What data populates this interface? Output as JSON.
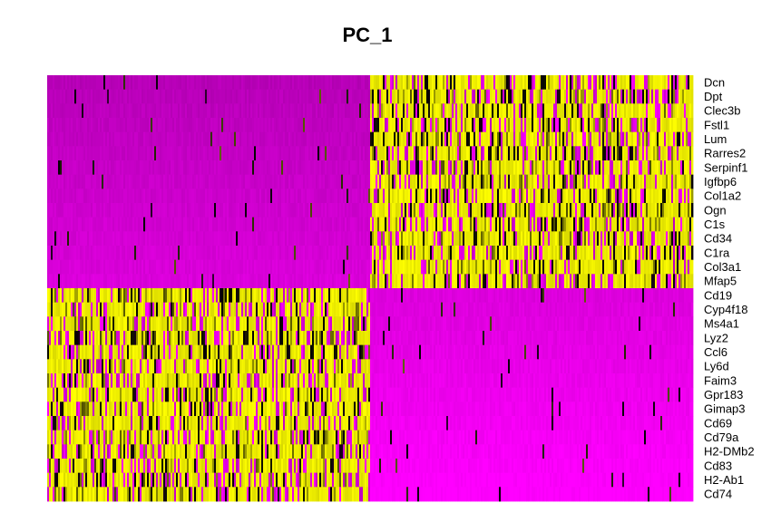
{
  "chart_data": {
    "type": "heatmap",
    "title": "PC_1",
    "genes": [
      "Dcn",
      "Dpt",
      "Clec3b",
      "Fstl1",
      "Lum",
      "Rarres2",
      "Serpinf1",
      "Igfbp6",
      "Col1a2",
      "Ogn",
      "C1s",
      "Cd34",
      "C1ra",
      "Col3a1",
      "Mfap5",
      "Cd19",
      "Cyp4f18",
      "Ms4a1",
      "Lyz2",
      "Ccl6",
      "Ly6d",
      "Faim3",
      "Gpr183",
      "Gimap3",
      "Cd69",
      "Cd79a",
      "H2-DMb2",
      "Cd83",
      "H2-Ab1",
      "Cd74"
    ],
    "colors": {
      "low": "#FF00FF",
      "mid": "#000000",
      "high": "#FFFF00"
    },
    "groups": [
      {
        "cell_fraction": 0.5,
        "high_genes": [
          "Cd19",
          "Cyp4f18",
          "Ms4a1",
          "Lyz2",
          "Ccl6",
          "Ly6d",
          "Faim3",
          "Gpr183",
          "Gimap3",
          "Cd69",
          "Cd79a",
          "H2-DMb2",
          "Cd83",
          "H2-Ab1",
          "Cd74"
        ]
      },
      {
        "cell_fraction": 0.5,
        "high_genes": [
          "Dcn",
          "Dpt",
          "Clec3b",
          "Fstl1",
          "Lum",
          "Rarres2",
          "Serpinf1",
          "Igfbp6",
          "Col1a2",
          "Ogn",
          "C1s",
          "Cd34",
          "C1ra",
          "Col3a1",
          "Mfap5"
        ]
      }
    ]
  }
}
